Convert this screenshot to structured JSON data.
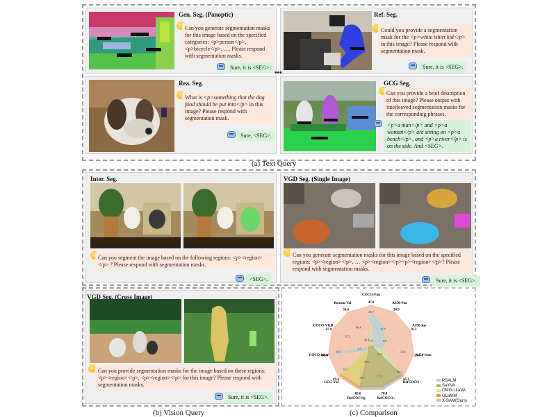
{
  "text_query": {
    "caption": "(a) Text Query",
    "gen_seg": {
      "title": "Gen. Seg. (Panoptic)",
      "question": "Can you generate segmentation masks for this image based on the specified categories: <p>person</p>, <p>bicycle</p>, …. Please respond with segmentation masks.",
      "answer": "Sure, it is <SEG>."
    },
    "ref_seg": {
      "title": "Ref. Seg.",
      "question_a": "Could you provide a segmentation mask for the ",
      "question_em": "<p>white tshirt kid</p>",
      "question_b": " in this image? Please respond with segmentation mask.",
      "answer": "Sure, it is <SEG>."
    },
    "rea_seg": {
      "title": "Rea. Seg.",
      "question_a": "What is ",
      "question_em": "<p>something that the dog food should be put into</p>",
      "question_b": " in this image? Please respond with segmentation mask.",
      "answer": "Sure, <SEG>."
    },
    "gcg_seg": {
      "title": "GCG Seg.",
      "question": "Can you provide a brief description of this image? Please output with interleaved segmentation masks for the corresponding phrases.",
      "answer": "<p>a man</p> and <p>a woman</p> are sitting on <p>a bench</p>, and <p>a river</p> is on the side. And <SEG>."
    }
  },
  "vision_query": {
    "caption": "(b) Vision Query",
    "inter_seg": {
      "title": "Inter. Seg.",
      "question": "Can you segment the image based on the following regions: <p><region></p> ? Please respond with segmentation masks.",
      "answer": "<SEG>."
    },
    "vgd_single": {
      "title": "VGD Seg. (Single Image)",
      "question": "Can you generate segmentation masks for this image based on the specified regions: <p><region></p>, … <p><region></p><p><region></p>? Please respond with segmentation masks.",
      "answer": "Sure, it is <SEG>."
    },
    "vgd_cross": {
      "title": "VGD Seg. (Cross Image)",
      "question": "Can you provide segmentation masks for the image based on these regions: <p><region></p>, <p><region></p> for this image? Please respond with segmentation masks.",
      "answer": "Sure, it is <SEG>."
    }
  },
  "comparison": {
    "caption": "(c) Comparison"
  },
  "colors": {
    "question_bg": "#fde8dd",
    "answer_bg": "#d8f3dc",
    "card_bg": "#efefef"
  },
  "chart_data": {
    "type": "radar",
    "axes": [
      "COCO-Pan",
      "A150-Pan",
      "A150-Ins",
      "A150-Sem",
      "RefCOCO",
      "RefCOCO+",
      "RefCOCOg",
      "GCG-Val",
      "COCO-Inter",
      "COCO-VGD",
      "Reason-Val"
    ],
    "max_labels": [
      "47.0",
      "28.9",
      "16.2",
      "28.8",
      "85.1",
      "78.0",
      "83.0",
      "69.4",
      "65.4",
      "47.9",
      "56.6"
    ],
    "series": [
      {
        "name": "PSALM",
        "color": "#9dd7e6",
        "values": [
          0.85,
          0.55,
          0.35,
          0.25,
          0.98,
          0.97,
          0.98,
          0.0,
          0.95,
          0.0,
          0.0
        ]
      },
      {
        "name": "SaYVA",
        "color": "#b9a06a",
        "values": [
          0.0,
          0.0,
          0.0,
          0.0,
          0.95,
          0.92,
          0.94,
          0.0,
          0.0,
          0.0,
          0.0
        ]
      },
      {
        "name": "OMG-LLaVA",
        "color": "#d4ec8a",
        "values": [
          0.6,
          0.0,
          0.0,
          0.3,
          0.9,
          0.85,
          0.9,
          0.9,
          0.0,
          0.0,
          0.0
        ]
      },
      {
        "name": "GLaMM",
        "color": "#e8963e",
        "values": [
          0.0,
          0.0,
          0.0,
          0.0,
          0.97,
          0.96,
          0.97,
          0.95,
          0.0,
          0.0,
          0.0
        ]
      },
      {
        "name": "X-SAM(Ours)",
        "color": "#f2b59a",
        "values": [
          1.0,
          1.0,
          1.0,
          1.0,
          1.0,
          1.0,
          1.0,
          1.0,
          1.0,
          1.0,
          1.0
        ]
      }
    ],
    "inner_labels": [
      "45.7",
      "13.7",
      "9.0",
      "23.6",
      "80.2",
      "77.2",
      "76.7",
      "65.7",
      "60.7",
      "37.2",
      "48.4",
      "3.0",
      "30.8",
      "16.6",
      "78.7",
      "3.5"
    ]
  }
}
